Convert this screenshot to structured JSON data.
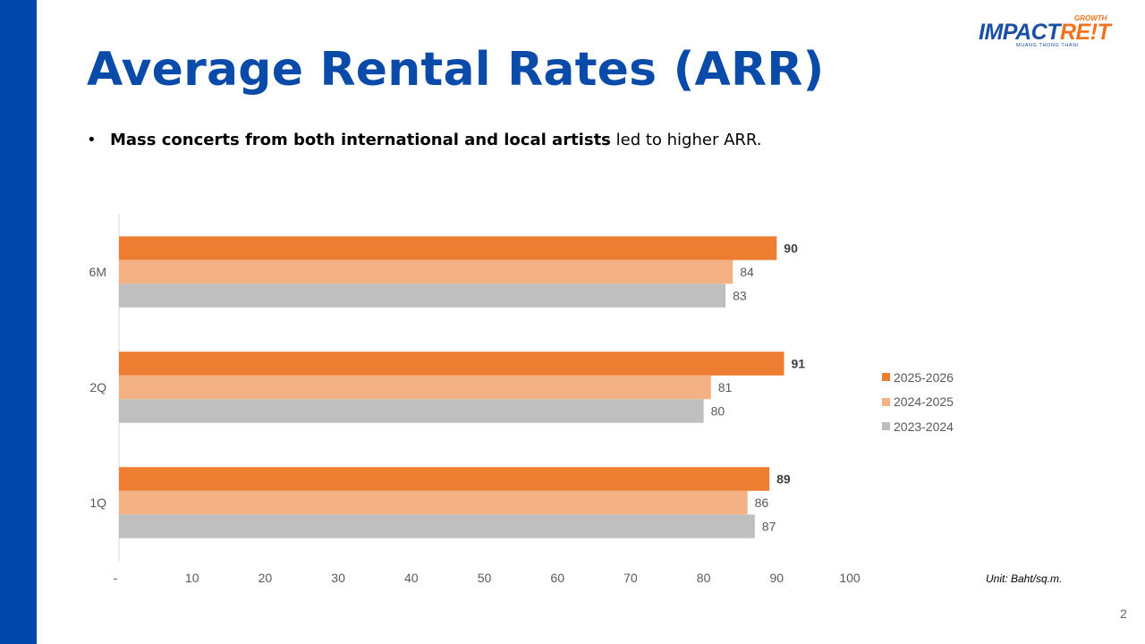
{
  "slide": {
    "title": "Average Rental Rates (ARR)",
    "bullet_bold": "Mass concerts from both international and local artists",
    "bullet_rest": " led to higher ARR.",
    "bullet_symbol": "•",
    "unit_note": "Unit: Baht/sq.m.",
    "page_number": "2"
  },
  "logo": {
    "growth": "GROWTH",
    "word_blue": "IMPACT",
    "word_orange": "RE!T",
    "subtitle": "MUANG THONG THANI"
  },
  "colors": {
    "sidebar": "#0047ab",
    "title": "#0a4aa8",
    "series_2025": "#ed7d31",
    "series_2024": "#f4b183",
    "series_2023": "#bfbfbf"
  },
  "chart_data": {
    "type": "bar",
    "orientation": "horizontal",
    "categories": [
      "6M",
      "2Q",
      "1Q"
    ],
    "series": [
      {
        "name": "2025-2026",
        "color": "#ed7d31",
        "values": [
          90,
          91,
          89
        ],
        "label_bold": true
      },
      {
        "name": "2024-2025",
        "color": "#f4b183",
        "values": [
          84,
          81,
          86
        ],
        "label_bold": false
      },
      {
        "name": "2023-2024",
        "color": "#bfbfbf",
        "values": [
          83,
          80,
          87
        ],
        "label_bold": false
      }
    ],
    "xlim": [
      0,
      100
    ],
    "x_ticks": [
      "-",
      "10",
      "20",
      "30",
      "40",
      "50",
      "60",
      "70",
      "80",
      "90",
      "100"
    ],
    "legend_position": "right",
    "grid": false
  }
}
